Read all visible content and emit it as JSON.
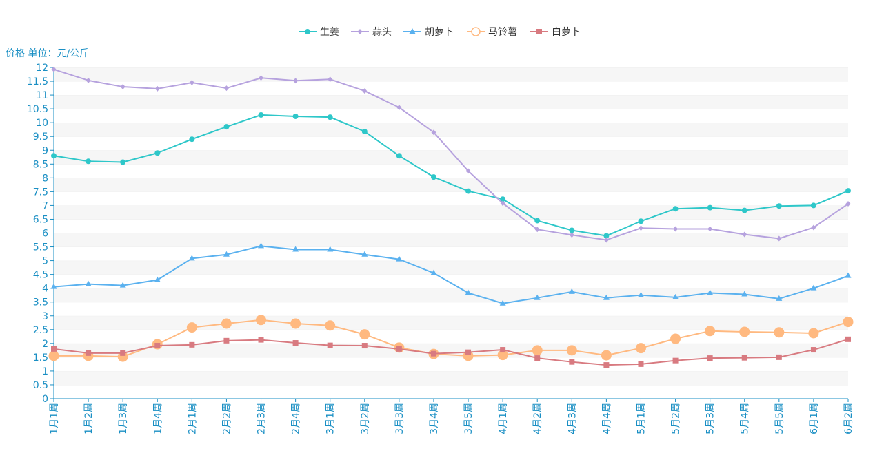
{
  "chart_data": {
    "type": "line",
    "title": "",
    "ylabel": "价格 单位：元/公斤",
    "ylim": [
      0,
      12
    ],
    "ytick_step": 0.5,
    "grid": "horizontal bands",
    "legend_position": "top-center",
    "categories": [
      "1月1周",
      "1月2周",
      "1月3周",
      "1月4周",
      "2月1周",
      "2月2周",
      "2月3周",
      "2月4周",
      "3月1周",
      "3月2周",
      "3月3周",
      "3月4周",
      "3月5周",
      "4月1周",
      "4月2周",
      "4月3周",
      "4月4周",
      "5月1周",
      "5月2周",
      "5月3周",
      "5月4周",
      "5月5周",
      "6月1周",
      "6月2周"
    ],
    "series": [
      {
        "name": "生姜",
        "color": "#2ec7c9",
        "marker": "circle",
        "values": [
          8.8,
          8.6,
          8.57,
          8.9,
          9.4,
          9.85,
          10.28,
          10.23,
          10.2,
          9.68,
          8.8,
          8.03,
          7.52,
          7.23,
          6.45,
          6.1,
          5.9,
          6.43,
          6.88,
          6.92,
          6.82,
          6.98,
          7.0,
          7.53
        ]
      },
      {
        "name": "蒜头",
        "color": "#b6a2de",
        "marker": "diamond",
        "values": [
          11.93,
          11.53,
          11.3,
          11.23,
          11.45,
          11.25,
          11.62,
          11.52,
          11.57,
          11.15,
          10.55,
          9.65,
          8.25,
          7.08,
          6.13,
          5.93,
          5.75,
          6.18,
          6.15,
          6.15,
          5.95,
          5.8,
          6.2,
          7.06
        ]
      },
      {
        "name": "胡萝卜",
        "color": "#5ab1ef",
        "marker": "triangle",
        "values": [
          4.05,
          4.15,
          4.1,
          4.3,
          5.08,
          5.22,
          5.53,
          5.4,
          5.4,
          5.22,
          5.05,
          4.55,
          3.83,
          3.45,
          3.65,
          3.87,
          3.65,
          3.75,
          3.67,
          3.83,
          3.78,
          3.62,
          4.0,
          4.45
        ]
      },
      {
        "name": "马铃薯",
        "color": "#ffb980",
        "marker": "hollow-circle",
        "values": [
          1.55,
          1.55,
          1.52,
          1.97,
          2.58,
          2.72,
          2.85,
          2.72,
          2.65,
          2.33,
          1.85,
          1.62,
          1.55,
          1.58,
          1.75,
          1.75,
          1.57,
          1.83,
          2.17,
          2.45,
          2.42,
          2.4,
          2.37,
          2.78
        ]
      },
      {
        "name": "白萝卜",
        "color": "#d87a80",
        "marker": "square",
        "values": [
          1.8,
          1.65,
          1.65,
          1.92,
          1.95,
          2.1,
          2.13,
          2.02,
          1.93,
          1.92,
          1.8,
          1.63,
          1.68,
          1.77,
          1.47,
          1.33,
          1.22,
          1.25,
          1.38,
          1.47,
          1.48,
          1.5,
          1.77,
          2.15
        ]
      }
    ]
  }
}
